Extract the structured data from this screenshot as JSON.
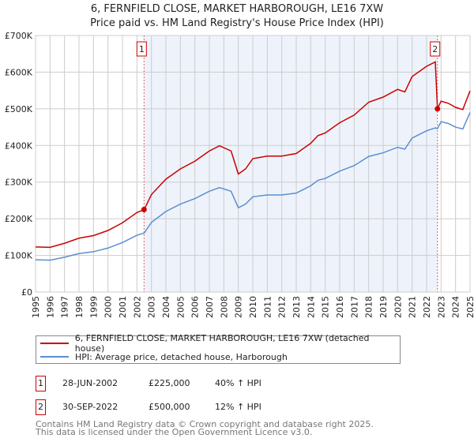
{
  "chart_data": {
    "type": "line",
    "title": "6, FERNFIELD CLOSE, MARKET HARBOROUGH, LE16 7XW",
    "subtitle": "Price paid vs. HM Land Registry's House Price Index (HPI)",
    "xlim": [
      1995,
      2025
    ],
    "ylim": [
      0,
      700000
    ],
    "y_ticks": [
      {
        "v": 0,
        "label": "£0"
      },
      {
        "v": 100000,
        "label": "£100K"
      },
      {
        "v": 200000,
        "label": "£200K"
      },
      {
        "v": 300000,
        "label": "£300K"
      },
      {
        "v": 400000,
        "label": "£400K"
      },
      {
        "v": 500000,
        "label": "£500K"
      },
      {
        "v": 600000,
        "label": "£600K"
      },
      {
        "v": 700000,
        "label": "£700K"
      }
    ],
    "x_ticks": [
      "1995",
      "1996",
      "1997",
      "1998",
      "1999",
      "2000",
      "2001",
      "2002",
      "2003",
      "2004",
      "2005",
      "2006",
      "2007",
      "2008",
      "2009",
      "2010",
      "2011",
      "2012",
      "2013",
      "2014",
      "2015",
      "2016",
      "2017",
      "2018",
      "2019",
      "2020",
      "2021",
      "2022",
      "2023",
      "2024",
      "2025"
    ],
    "grid": true,
    "series": [
      {
        "name": "6, FERNFIELD CLOSE, MARKET HARBOROUGH, LE16 7XW (detached house)",
        "color": "#cc0000",
        "x": [
          1995,
          1996,
          1997,
          1998,
          1999,
          2000,
          2001,
          2002,
          2002.5,
          2003,
          2004,
          2005,
          2006,
          2007,
          2007.7,
          2008.5,
          2009,
          2009.5,
          2010,
          2011,
          2012,
          2013,
          2014,
          2014.5,
          2015,
          2016,
          2017,
          2018,
          2019,
          2020,
          2020.5,
          2021,
          2022,
          2022.6,
          2022.75,
          2023,
          2023.5,
          2024,
          2024.5,
          2025
        ],
        "y": [
          123000,
          122000,
          133000,
          147000,
          154000,
          168000,
          189000,
          217000,
          225000,
          266000,
          308000,
          336000,
          357000,
          385000,
          399000,
          385000,
          322000,
          336000,
          364000,
          371000,
          371000,
          378000,
          406000,
          427000,
          434000,
          462000,
          483000,
          518000,
          532000,
          553000,
          546000,
          588000,
          616000,
          628000,
          500000,
          521000,
          515000,
          504000,
          498000,
          549000
        ]
      },
      {
        "name": "HPI: Average price, detached house, Harborough",
        "color": "#5b8fd0",
        "x": [
          1995,
          1996,
          1997,
          1998,
          1999,
          2000,
          2001,
          2002,
          2002.5,
          2003,
          2004,
          2005,
          2006,
          2007,
          2007.7,
          2008.5,
          2009,
          2009.5,
          2010,
          2011,
          2012,
          2013,
          2014,
          2014.5,
          2015,
          2016,
          2017,
          2018,
          2019,
          2020,
          2020.5,
          2021,
          2022,
          2022.6,
          2022.75,
          2023,
          2023.5,
          2024,
          2024.5,
          2025
        ],
        "y": [
          88000,
          87000,
          95000,
          105000,
          110000,
          120000,
          135000,
          155000,
          161000,
          190000,
          220000,
          240000,
          255000,
          275000,
          285000,
          275000,
          230000,
          240000,
          260000,
          265000,
          265000,
          270000,
          290000,
          305000,
          310000,
          330000,
          345000,
          370000,
          380000,
          395000,
          390000,
          420000,
          440000,
          448000,
          446000,
          465000,
          460000,
          450000,
          445000,
          490000
        ]
      }
    ],
    "sales": [
      {
        "label": "1",
        "x": 2002.49,
        "price": 225000,
        "date": "28-JUN-2002",
        "price_text": "£225,000",
        "delta": "40% ↑ HPI"
      },
      {
        "label": "2",
        "x": 2022.75,
        "price": 500000,
        "date": "30-SEP-2022",
        "price_text": "£500,000",
        "delta": "12% ↑ HPI"
      }
    ],
    "legend_placement": "below"
  },
  "footer": [
    "Contains HM Land Registry data © Crown copyright and database right 2025.",
    "This data is licensed under the Open Government Licence v3.0."
  ]
}
